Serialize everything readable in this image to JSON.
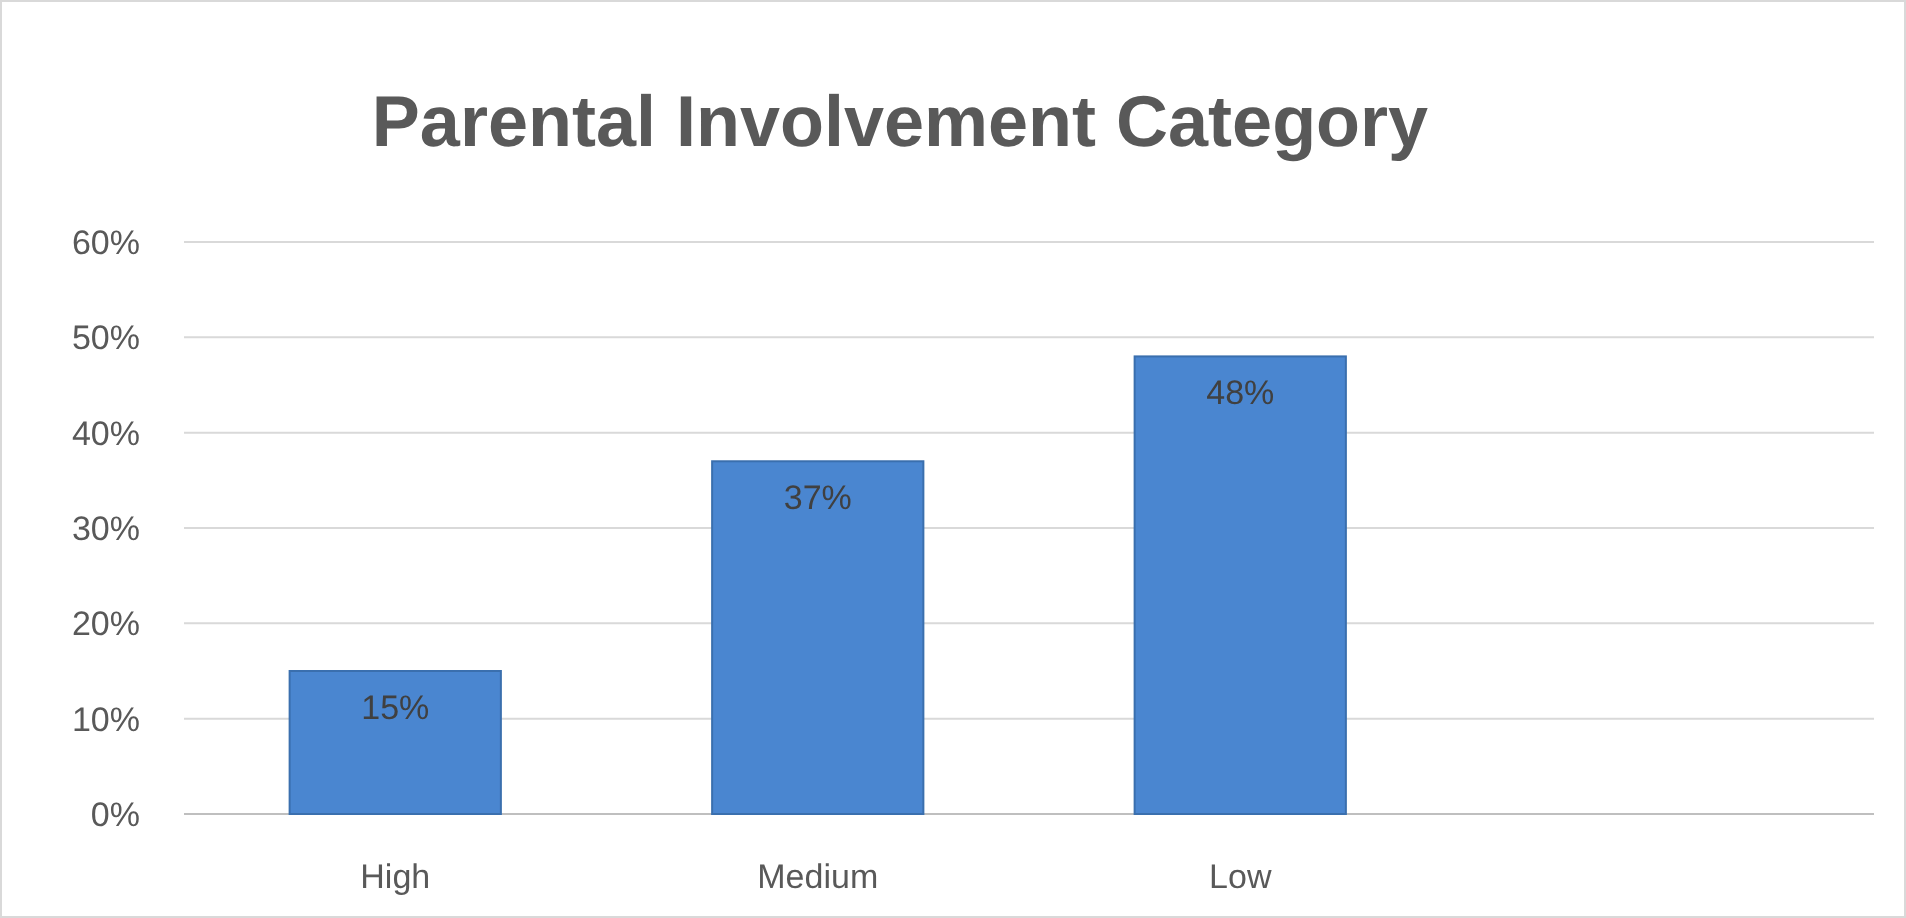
{
  "chart_data": {
    "type": "bar",
    "title": "Parental Involvement Category",
    "categories": [
      "High",
      "Medium",
      "Low",
      null
    ],
    "values": [
      15,
      37,
      48,
      null
    ],
    "value_labels": [
      "15%",
      "37%",
      "48%",
      null
    ],
    "color": "#4a86d0",
    "ylim": [
      0,
      60
    ],
    "yticks": [
      {
        "value": 0,
        "label": "0%"
      },
      {
        "value": 10,
        "label": "10%"
      },
      {
        "value": 20,
        "label": "20%"
      },
      {
        "value": 30,
        "label": "30%"
      },
      {
        "value": 40,
        "label": "40%"
      },
      {
        "value": 50,
        "label": "50%"
      },
      {
        "value": 60,
        "label": "60%"
      }
    ],
    "grid": "y"
  }
}
